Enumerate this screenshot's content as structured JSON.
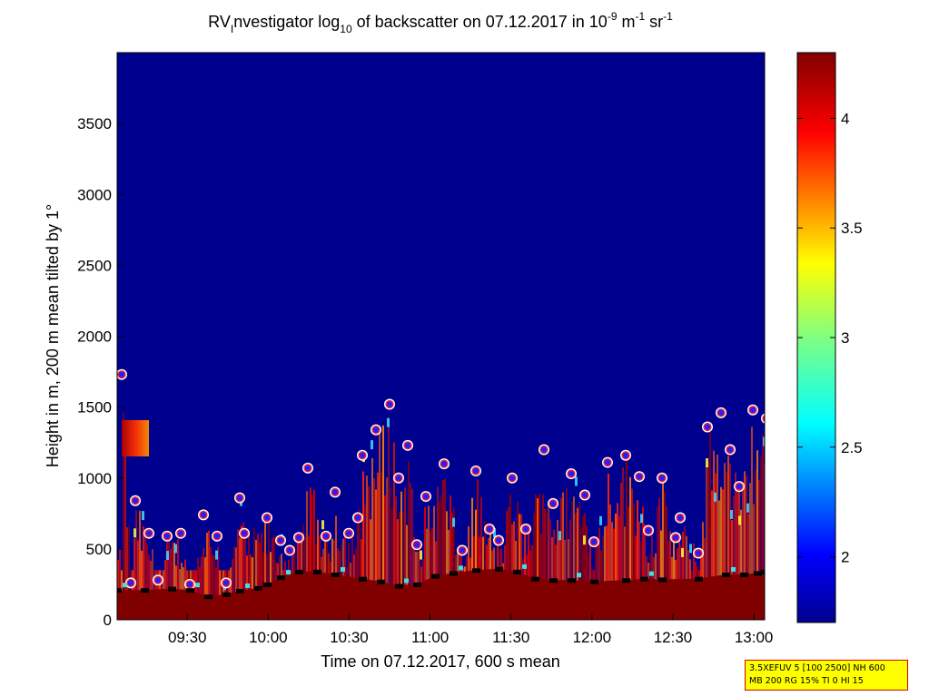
{
  "chart_data": {
    "type": "heatmap",
    "title": {
      "prefix": "RV",
      "prefix_sub": "I",
      "mid1": "nvestigator log",
      "log_sub": "10",
      "mid2": " of backscatter on 07.12.2017 in 10",
      "exp1": "-9",
      "unit_m": " m",
      "exp2": "-1",
      "unit_sr": " sr",
      "exp3": "-1"
    },
    "xlabel": "Time on 07.12.2017, 600 s mean",
    "ylabel": "Height in m, 200 m mean tilted by 1°",
    "x_range": [
      "09:04",
      "13:04"
    ],
    "ylim": [
      0,
      4000
    ],
    "x_ticks": [
      "09:30",
      "10:00",
      "10:30",
      "11:00",
      "11:30",
      "12:00",
      "12:30",
      "13:00"
    ],
    "y_ticks": [
      0,
      500,
      1000,
      1500,
      2000,
      2500,
      3000,
      3500
    ],
    "colorbar": {
      "range": [
        1.7,
        4.3
      ],
      "ticks": [
        "2",
        "2.5",
        "3",
        "3.5",
        "4"
      ]
    },
    "background_color": "#00008f",
    "cloud_layer_color": "#800000",
    "cloud_base_heights_m": [
      [
        5,
        1730
      ],
      [
        15,
        260
      ],
      [
        20,
        840
      ],
      [
        35,
        610
      ],
      [
        45,
        280
      ],
      [
        55,
        590
      ],
      [
        70,
        610
      ],
      [
        80,
        250
      ],
      [
        95,
        740
      ],
      [
        110,
        590
      ],
      [
        120,
        260
      ],
      [
        135,
        860
      ],
      [
        140,
        610
      ],
      [
        165,
        720
      ],
      [
        180,
        560
      ],
      [
        190,
        490
      ],
      [
        200,
        580
      ],
      [
        210,
        1070
      ],
      [
        230,
        590
      ],
      [
        240,
        900
      ],
      [
        255,
        610
      ],
      [
        265,
        720
      ],
      [
        270,
        1160
      ],
      [
        285,
        1340
      ],
      [
        300,
        1520
      ],
      [
        310,
        1000
      ],
      [
        320,
        1230
      ],
      [
        330,
        530
      ],
      [
        340,
        870
      ],
      [
        360,
        1100
      ],
      [
        380,
        490
      ],
      [
        395,
        1050
      ],
      [
        410,
        640
      ],
      [
        420,
        560
      ],
      [
        435,
        1000
      ],
      [
        450,
        640
      ],
      [
        470,
        1200
      ],
      [
        480,
        820
      ],
      [
        500,
        1030
      ],
      [
        515,
        880
      ],
      [
        525,
        550
      ],
      [
        540,
        1110
      ],
      [
        560,
        1160
      ],
      [
        575,
        1010
      ],
      [
        585,
        630
      ],
      [
        600,
        1000
      ],
      [
        615,
        580
      ],
      [
        620,
        720
      ],
      [
        640,
        470
      ],
      [
        650,
        1360
      ],
      [
        665,
        1460
      ],
      [
        675,
        1200
      ],
      [
        685,
        940
      ],
      [
        700,
        1480
      ],
      [
        715,
        1420
      ],
      [
        725,
        1090
      ],
      [
        735,
        1450
      ],
      [
        750,
        1740
      ],
      [
        765,
        1640
      ],
      [
        780,
        1900
      ],
      [
        795,
        1600
      ],
      [
        800,
        920
      ],
      [
        815,
        1820
      ],
      [
        825,
        1590
      ],
      [
        835,
        610
      ]
    ],
    "surface_layer_heights_m": [
      [
        0,
        210
      ],
      [
        30,
        210
      ],
      [
        60,
        220
      ],
      [
        80,
        210
      ],
      [
        100,
        165
      ],
      [
        120,
        180
      ],
      [
        135,
        205
      ],
      [
        155,
        225
      ],
      [
        165,
        250
      ],
      [
        180,
        300
      ],
      [
        200,
        340
      ],
      [
        220,
        340
      ],
      [
        240,
        320
      ],
      [
        270,
        290
      ],
      [
        290,
        270
      ],
      [
        310,
        240
      ],
      [
        330,
        250
      ],
      [
        350,
        310
      ],
      [
        370,
        330
      ],
      [
        395,
        350
      ],
      [
        420,
        360
      ],
      [
        440,
        340
      ],
      [
        460,
        290
      ],
      [
        480,
        280
      ],
      [
        500,
        280
      ],
      [
        525,
        270
      ],
      [
        560,
        280
      ],
      [
        580,
        290
      ],
      [
        600,
        285
      ],
      [
        640,
        290
      ],
      [
        670,
        320
      ],
      [
        690,
        320
      ],
      [
        705,
        330
      ],
      [
        713,
        340
      ]
    ],
    "info_lines": [
      "3.5XEFUV 5 [100 2500] NH 600",
      "MB 200 RG 15% TI 0 HI 15"
    ]
  }
}
